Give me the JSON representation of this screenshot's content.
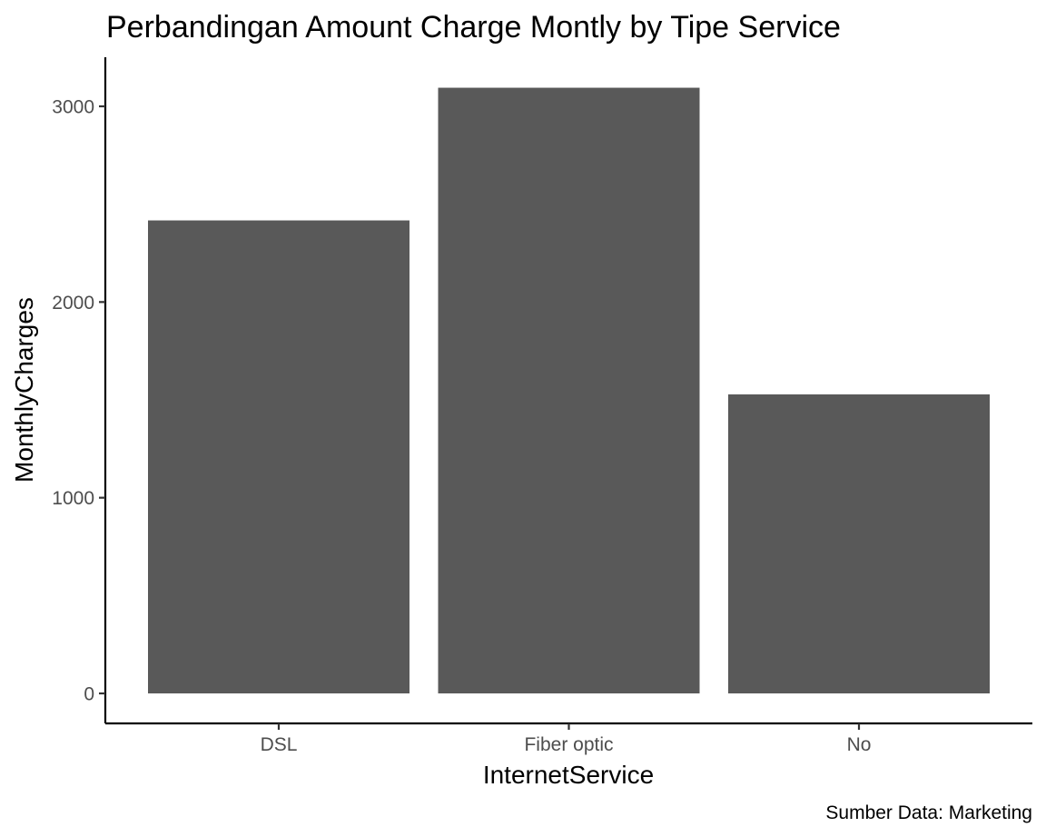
{
  "chart_data": {
    "type": "bar",
    "title": "Perbandingan Amount Charge Montly by Tipe Service",
    "xlabel": "InternetService",
    "ylabel": "MonthlyCharges",
    "caption": "Sumber Data: Marketing",
    "categories": [
      "DSL",
      "Fiber optic",
      "No"
    ],
    "values": [
      2417,
      3095,
      1528
    ],
    "ylim": [
      0,
      3250
    ],
    "yticks": [
      0,
      1000,
      2000,
      3000
    ],
    "bar_color": "#595959",
    "grid": false,
    "legend": "none"
  }
}
